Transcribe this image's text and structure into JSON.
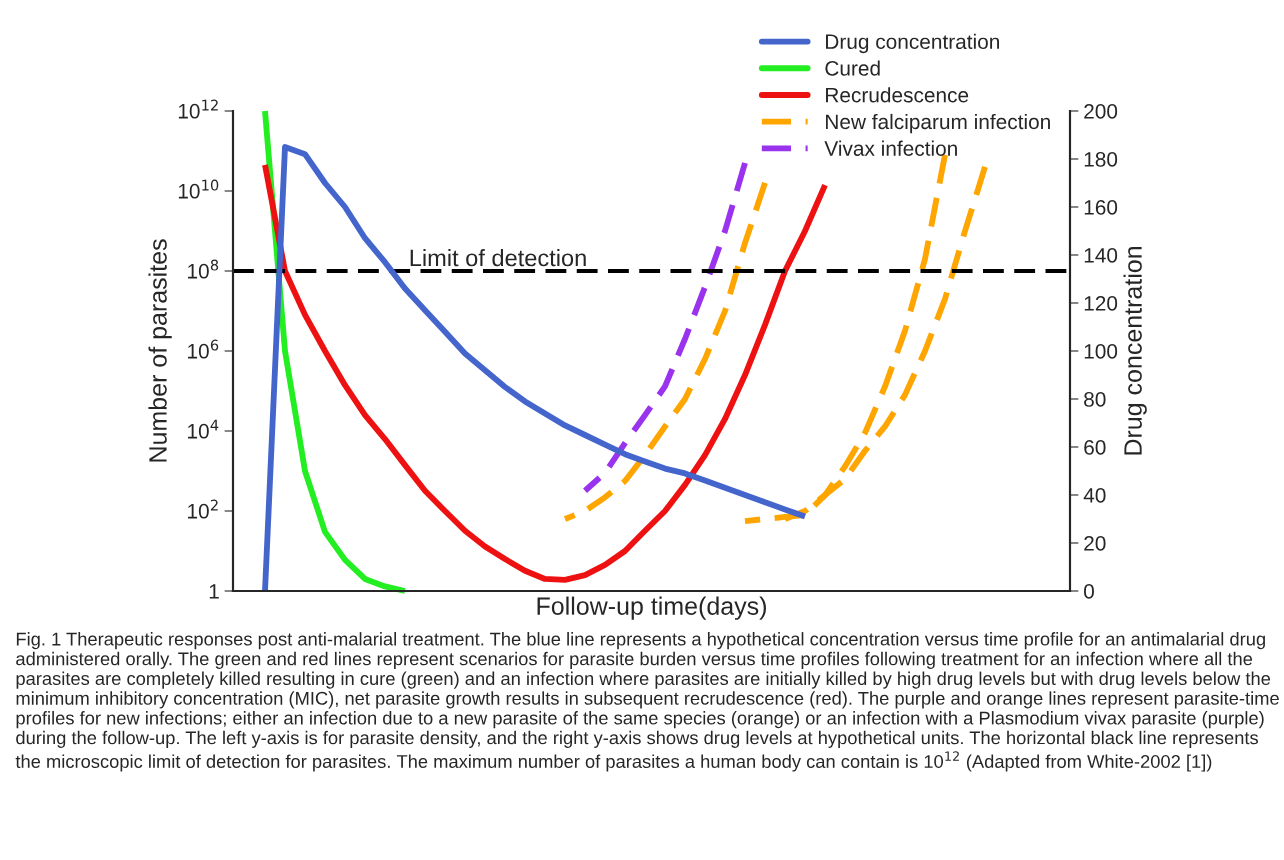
{
  "chart_data": {
    "type": "line",
    "xlabel": "Follow-up time(days)",
    "ylabel": "Number of parasites",
    "y2label": "Drug concentration",
    "categories": [
      null,
      null,
      null,
      null,
      null,
      null,
      null,
      null,
      null,
      null,
      null,
      null,
      null,
      null,
      null,
      null,
      null,
      null,
      null,
      null,
      null,
      null,
      null,
      null,
      null,
      null,
      null,
      null,
      null,
      null,
      null,
      null,
      null,
      null,
      null,
      null,
      null,
      null,
      null,
      null,
      null,
      null,
      null
    ],
    "series": [
      {
        "name": "Drug concentration",
        "color": "#4466cc",
        "axis": "y2",
        "line_style": "solid",
        "values": [
          null,
          null,
          0,
          185,
          182,
          170,
          160,
          147,
          137,
          126,
          117,
          108,
          99,
          92,
          85,
          79,
          74,
          69,
          65,
          61,
          57,
          54,
          51,
          49,
          46,
          43,
          40,
          37,
          34,
          31,
          null,
          null,
          null,
          null,
          null,
          null,
          null,
          null,
          null,
          null,
          null,
          null,
          null
        ]
      },
      {
        "name": "Cured",
        "color": "#22ee22",
        "line_style": "solid",
        "values": [
          null,
          null,
          1000000000000.0,
          1000000.0,
          1000,
          30,
          6,
          2,
          1.3,
          1,
          null,
          null,
          null,
          null,
          null,
          null,
          null,
          null,
          null,
          null,
          null,
          null,
          null,
          null,
          null,
          null,
          null,
          null,
          null,
          null,
          null,
          null,
          null,
          null,
          null,
          null,
          null,
          null,
          null,
          null,
          null,
          null,
          null
        ]
      },
      {
        "name": "Recrudescence",
        "color": "#ee1111",
        "line_style": "solid",
        "values": [
          null,
          null,
          45000000000.0,
          100000000.0,
          8000000.0,
          1000000.0,
          140000.0,
          25000.0,
          6300,
          1400,
          320,
          100,
          32,
          13,
          6.3,
          3.2,
          2,
          1.9,
          2.5,
          4.5,
          10,
          32,
          100,
          450,
          2500,
          20000.0,
          250000.0,
          4500000.0,
          100000000.0,
          1000000000.0,
          14000000000.0,
          null,
          null,
          null,
          null,
          null,
          null,
          null,
          null,
          null,
          null,
          null,
          null
        ]
      },
      {
        "name": "New falciparum infection",
        "color": "#ffa500",
        "line_style": "dashed",
        "values": [
          null,
          null,
          null,
          null,
          null,
          null,
          null,
          null,
          null,
          null,
          null,
          null,
          null,
          null,
          null,
          null,
          null,
          63,
          100,
          220,
          560,
          2500,
          13000.0,
          63000.0,
          630000.0,
          10000000.0,
          500000000.0,
          16000000000.0,
          null,
          null,
          null,
          null,
          null,
          null,
          null,
          null,
          null,
          null,
          null,
          null,
          null,
          null,
          null
        ]
      },
      {
        "name": "Vivax infection",
        "color": "#9933ee",
        "line_style": "dashed",
        "values": [
          null,
          null,
          null,
          null,
          null,
          null,
          null,
          null,
          null,
          null,
          null,
          null,
          null,
          null,
          null,
          null,
          null,
          null,
          320,
          900,
          5000,
          25000.0,
          130000.0,
          2000000.0,
          40000000.0,
          1000000000.0,
          50000000000.0,
          null,
          null,
          null,
          null,
          null,
          null,
          null,
          null,
          null,
          null,
          null,
          null,
          null,
          null,
          null,
          null
        ]
      },
      {
        "color": "#ffa500",
        "line_style": "dashed",
        "values": [
          null,
          null,
          null,
          null,
          null,
          null,
          null,
          null,
          null,
          null,
          null,
          null,
          null,
          null,
          null,
          null,
          null,
          null,
          null,
          null,
          null,
          null,
          null,
          null,
          null,
          null,
          56,
          63,
          71,
          80,
          250,
          1300,
          9000,
          130000.0,
          3200000.0,
          200000000.0,
          80000000000.0,
          null,
          null,
          null,
          null,
          null,
          null
        ]
      },
      {
        "color": "#ffa500",
        "line_style": "dashed",
        "values": [
          null,
          null,
          null,
          null,
          null,
          null,
          null,
          null,
          null,
          null,
          null,
          null,
          null,
          null,
          null,
          null,
          null,
          null,
          null,
          null,
          null,
          null,
          null,
          null,
          null,
          null,
          null,
          null,
          63,
          100,
          250,
          630,
          3200,
          13000.0,
          80000.0,
          1000000.0,
          20000000.0,
          1000000000.0,
          40000000000.0,
          null,
          null,
          null,
          null
        ]
      }
    ],
    "log": "y",
    "ylim": [
      1,
      1000000000000.0
    ],
    "yticks": [
      1,
      {
        "value": 100,
        "label": "10$^{2}$"
      },
      {
        "value": 10000,
        "label": "10$^{4}$"
      },
      {
        "value": 1000000.0,
        "label": "10$^{6}$"
      },
      {
        "value": 100000000.0,
        "label": "10$^{8}$"
      },
      {
        "value": 10000000000.0,
        "label": "10$^{10}$"
      },
      {
        "value": 1000000000000.0,
        "label": "10$^{12}$"
      }
    ],
    "y2lim": [
      0,
      200
    ],
    "y2ticks": [
      0,
      20,
      40,
      60,
      80,
      100,
      120,
      140,
      160,
      180,
      200
    ],
    "ref_lines": [
      {
        "axis": "y",
        "value": 100000000.0,
        "label": "Limit of detection",
        "color": "#000000",
        "line_style": "dashed"
      }
    ],
    "tick_labels": "y",
    "grid": false,
    "legend": "top right",
    "marker": "none",
    "annotations": [
      "Fig. 1 Therapeutic responses post anti-malarial treatment. The blue line represents a hypothetical concentration versus time profile for an antimalarial drug administered orally. The green and red lines represent scenarios for parasite burden versus time profiles following treatment for an infection where all the parasites are completely killed resulting in cure (green) and an infection where parasites are initially killed by high drug levels but with drug levels below the minimum inhibitory concentration (MIC), net parasite growth results in subsequent recrudescence (red). The purple and orange lines represent parasite-time profiles for new infections; either an infection due to a new parasite of the same species (orange) or an infection with a Plasmodium vivax parasite (purple) during the follow-up. The left y-axis is for parasite density, and the right y-axis shows drug levels at hypothetical units. The horizontal black line represents the microscopic limit of detection for parasites. The maximum number of parasites a human body can contain is 10$^{12}$ (Adapted from White-2002 [1])"
    ]
  }
}
